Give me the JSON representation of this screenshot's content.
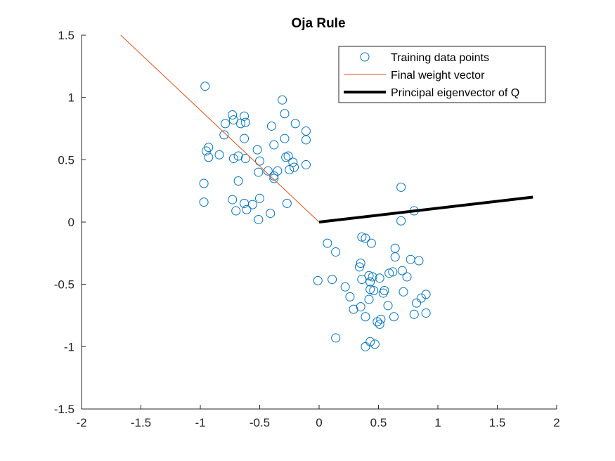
{
  "chart_data": {
    "type": "scatter",
    "title": "Oja Rule",
    "xlabel": "",
    "ylabel": "",
    "xlim": [
      -2,
      2
    ],
    "ylim": [
      -1.5,
      1.5
    ],
    "x_ticks": [
      -2,
      -1.5,
      -1,
      -0.5,
      0,
      0.5,
      1,
      1.5,
      2
    ],
    "y_ticks": [
      -1.5,
      -1,
      -0.5,
      0,
      0.5,
      1,
      1.5
    ],
    "x_tick_labels": [
      "-2",
      "-1.5",
      "-1",
      "-0.5",
      "0",
      "0.5",
      "1",
      "1.5",
      "2"
    ],
    "y_tick_labels": [
      "-1.5",
      "-1",
      "-0.5",
      "0",
      "0.5",
      "1",
      "1.5"
    ],
    "grid": false,
    "legend_position": "top-right",
    "series": [
      {
        "name": "Training data points",
        "kind": "scatter",
        "marker": "circle-open",
        "color": "#0072BD",
        "points": [
          [
            -0.96,
            1.09
          ],
          [
            -0.73,
            0.86
          ],
          [
            -0.72,
            0.82
          ],
          [
            -0.63,
            0.85
          ],
          [
            -0.62,
            0.8
          ],
          [
            -0.66,
            0.79
          ],
          [
            -0.79,
            0.79
          ],
          [
            -0.8,
            0.7
          ],
          [
            -0.63,
            0.67
          ],
          [
            -0.4,
            0.77
          ],
          [
            -0.31,
            0.98
          ],
          [
            -0.29,
            0.87
          ],
          [
            -0.2,
            0.79
          ],
          [
            -0.11,
            0.73
          ],
          [
            -0.11,
            0.66
          ],
          [
            -0.29,
            0.67
          ],
          [
            -0.38,
            0.62
          ],
          [
            -0.93,
            0.6
          ],
          [
            -0.95,
            0.57
          ],
          [
            -0.93,
            0.52
          ],
          [
            -0.84,
            0.54
          ],
          [
            -0.72,
            0.51
          ],
          [
            -0.68,
            0.53
          ],
          [
            -0.62,
            0.51
          ],
          [
            -0.52,
            0.58
          ],
          [
            -0.5,
            0.49
          ],
          [
            -0.26,
            0.53
          ],
          [
            -0.28,
            0.52
          ],
          [
            -0.22,
            0.48
          ],
          [
            -0.21,
            0.44
          ],
          [
            -0.25,
            0.42
          ],
          [
            -0.11,
            0.46
          ],
          [
            -0.43,
            0.41
          ],
          [
            -0.35,
            0.41
          ],
          [
            -0.38,
            0.37
          ],
          [
            -0.38,
            0.35
          ],
          [
            -0.51,
            0.4
          ],
          [
            -0.97,
            0.31
          ],
          [
            -0.68,
            0.33
          ],
          [
            -0.97,
            0.16
          ],
          [
            -0.73,
            0.18
          ],
          [
            -0.63,
            0.15
          ],
          [
            -0.61,
            0.1
          ],
          [
            -0.56,
            0.14
          ],
          [
            -0.5,
            0.19
          ],
          [
            -0.7,
            0.09
          ],
          [
            -0.41,
            0.07
          ],
          [
            -0.51,
            0.02
          ],
          [
            -0.27,
            0.15
          ],
          [
            0.69,
            0.28
          ],
          [
            0.8,
            0.09
          ],
          [
            0.69,
            0.01
          ],
          [
            0.07,
            -0.17
          ],
          [
            0.14,
            -0.24
          ],
          [
            0.36,
            -0.12
          ],
          [
            0.39,
            -0.13
          ],
          [
            0.44,
            -0.17
          ],
          [
            0.64,
            -0.21
          ],
          [
            0.64,
            -0.28
          ],
          [
            0.35,
            -0.33
          ],
          [
            0.34,
            -0.36
          ],
          [
            0.45,
            -0.44
          ],
          [
            0.42,
            -0.43
          ],
          [
            0.59,
            -0.41
          ],
          [
            0.62,
            -0.4
          ],
          [
            0.7,
            -0.39
          ],
          [
            0.74,
            -0.44
          ],
          [
            0.77,
            -0.3
          ],
          [
            0.84,
            -0.31
          ],
          [
            -0.01,
            -0.47
          ],
          [
            0.11,
            -0.46
          ],
          [
            0.36,
            -0.46
          ],
          [
            0.43,
            -0.48
          ],
          [
            0.51,
            -0.45
          ],
          [
            0.22,
            -0.52
          ],
          [
            0.43,
            -0.54
          ],
          [
            0.46,
            -0.55
          ],
          [
            0.54,
            -0.57
          ],
          [
            0.55,
            -0.55
          ],
          [
            0.71,
            -0.56
          ],
          [
            0.26,
            -0.6
          ],
          [
            0.42,
            -0.62
          ],
          [
            0.29,
            -0.7
          ],
          [
            0.35,
            -0.68
          ],
          [
            0.58,
            -0.67
          ],
          [
            0.82,
            -0.65
          ],
          [
            0.86,
            -0.61
          ],
          [
            0.9,
            -0.58
          ],
          [
            0.39,
            -0.76
          ],
          [
            0.52,
            -0.78
          ],
          [
            0.49,
            -0.8
          ],
          [
            0.51,
            -0.82
          ],
          [
            0.63,
            -0.76
          ],
          [
            0.8,
            -0.74
          ],
          [
            0.9,
            -0.73
          ],
          [
            0.14,
            -0.93
          ],
          [
            0.43,
            -0.96
          ],
          [
            0.39,
            -1.0
          ],
          [
            0.47,
            -0.98
          ]
        ]
      },
      {
        "name": "Final weight vector",
        "kind": "line",
        "color": "#D95319",
        "width": 1,
        "x": [
          0,
          -1.67
        ],
        "y": [
          0,
          1.5
        ]
      },
      {
        "name": "Principal eigenvector of Q",
        "kind": "line",
        "color": "#000000",
        "width": 4,
        "x": [
          0,
          1.8
        ],
        "y": [
          0,
          0.2
        ]
      }
    ]
  }
}
